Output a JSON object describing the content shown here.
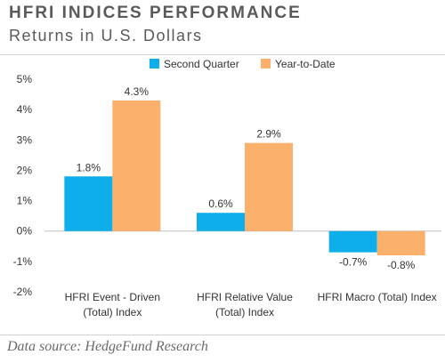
{
  "header": {
    "title": "HFRI INDICES PERFORMANCE",
    "subtitle": "Returns in U.S. Dollars"
  },
  "footer": {
    "source": "Data source: HedgeFund Research"
  },
  "chart_data": {
    "type": "bar",
    "title": "HFRI INDICES PERFORMANCE",
    "subtitle": "Returns in U.S. Dollars",
    "categories": [
      [
        "HFRI Event - Driven",
        "(Total) Index"
      ],
      [
        "HFRI Relative Value",
        "(Total) Index"
      ],
      [
        "HFRI Macro (Total) Index"
      ]
    ],
    "series": [
      {
        "name": "Second Quarter",
        "values": [
          1.8,
          0.6,
          -0.7
        ],
        "labels": [
          "1.8%",
          "0.6%",
          "-0.7%"
        ],
        "color": "#0daeea"
      },
      {
        "name": "Year-to-Date",
        "values": [
          4.3,
          2.9,
          -0.8
        ],
        "labels": [
          "4.3%",
          "2.9%",
          "-0.8%"
        ],
        "color": "#fbb06b"
      }
    ],
    "yticks": [
      "5%",
      "4%",
      "3%",
      "2%",
      "1%",
      "0%",
      "-1%",
      "-2%"
    ],
    "ylim": [
      -2,
      5
    ],
    "legend": "top-center",
    "grid": false
  }
}
